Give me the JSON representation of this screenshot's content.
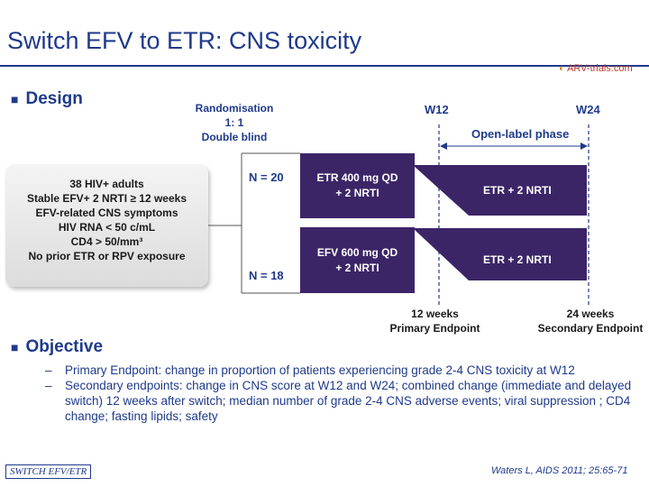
{
  "title": "Switch EFV to ETR: CNS toxicity",
  "logo": {
    "text": "ARV-trials.com",
    "color": "#c0392b"
  },
  "design": {
    "heading": "Design",
    "randomisation": [
      "Randomisation",
      "1: 1",
      "Double blind"
    ],
    "criteria": [
      "38 HIV+ adults",
      "Stable EFV+ 2 NRTI ≥ 12 weeks",
      "EFV-related CNS symptoms",
      "HIV RNA < 50 c/mL",
      "CD4 > 50/mm³",
      "No prior ETR or RPV exposure"
    ],
    "arms": [
      {
        "n": "N = 20",
        "treatment": [
          "ETR 400 mg QD",
          "+ 2 NRTI"
        ],
        "open_label": "ETR + 2 NRTI"
      },
      {
        "n": "N = 18",
        "treatment": [
          "EFV 600 mg QD",
          "+ 2 NRTI"
        ],
        "open_label": "ETR + 2 NRTI"
      }
    ],
    "week_labels": [
      "W12",
      "W24"
    ],
    "phase_label": "Open-label phase",
    "endpoints": [
      [
        "12 weeks",
        "Primary Endpoint"
      ],
      [
        "24 weeks",
        "Secondary Endpoint"
      ]
    ],
    "arm_color": "#3b2567"
  },
  "objective": {
    "heading": "Objective",
    "items": [
      "Primary Endpoint: change in proportion of patients experiencing grade 2-4 CNS toxicity at W12",
      "Secondary endpoints: change in CNS score at W12 and W24; combined change (immediate and delayed switch) 12 weeks after switch; median number of grade 2-4 CNS adverse events; viral suppression ; CD4 change; fasting lipids; safety"
    ]
  },
  "footer": {
    "tag": "SWITCH EFV/ETR",
    "citation": "Waters L, AIDS 2011; 25:65-71"
  },
  "accent_color": "#1f3a8a"
}
